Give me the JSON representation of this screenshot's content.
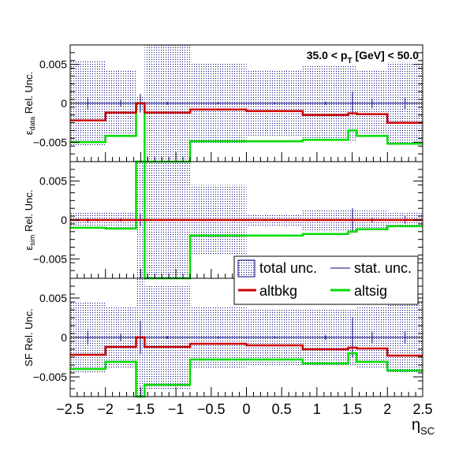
{
  "chart_data": {
    "type": "step",
    "title": "35.0 < p_T [GeV] < 50.0",
    "title_parts": {
      "pre": "35.0 < p",
      "sub": "T",
      "post": " [GeV] < 50.0"
    },
    "xlabel": {
      "main": "η",
      "sub": "SC"
    },
    "xlim": [
      -2.5,
      2.5
    ],
    "x_ticks": [
      -2.5,
      -2,
      -1.5,
      -1,
      -0.5,
      0,
      0.5,
      1,
      1.5,
      2,
      2.5
    ],
    "x_tick_labels": [
      "−2.5",
      "−2",
      "−1.5",
      "−1",
      "−0.5",
      "0",
      "0.5",
      "1",
      "1.5",
      "2",
      "2.5"
    ],
    "bin_edges": [
      -2.5,
      -2.0,
      -1.566,
      -1.444,
      -0.8,
      0.0,
      0.8,
      1.444,
      1.566,
      2.0,
      2.5
    ],
    "colors": {
      "total": "#00007f",
      "stat": "#00007f",
      "altbkg": "#cc0000",
      "altsig": "#00dd00"
    },
    "legend": {
      "position": "lower-right of middle panel",
      "entries": [
        {
          "key": "total",
          "label": "total unc."
        },
        {
          "key": "stat",
          "label": "stat. unc."
        },
        {
          "key": "altbkg",
          "label": "altbkg"
        },
        {
          "key": "altsig",
          "label": "altsig"
        }
      ]
    },
    "panels": [
      {
        "name": "data",
        "ylabel": {
          "pre": "ε",
          "sub": "data",
          "post": " Rel. Unc."
        },
        "ylim": [
          -0.0075,
          0.0075
        ],
        "y_ticks": [
          -0.005,
          0,
          0.005
        ],
        "y_tick_labels": [
          "−0.005",
          "0",
          "0.005"
        ],
        "total_unc": [
          0.0055,
          0.0043,
          0.0008,
          0.0075,
          0.0052,
          0.0043,
          0.0048,
          0.0048,
          0.0042,
          0.0053
        ],
        "stat_unc": [
          0.0008,
          0.0004,
          0.0012,
          0.0002,
          0.0001,
          0.0001,
          0.0002,
          0.0015,
          0.0006,
          0.0007
        ],
        "altbkg": [
          -0.0022,
          -0.0012,
          0.0,
          -0.0012,
          -0.0008,
          -0.001,
          -0.0015,
          -0.0013,
          -0.0014,
          -0.0025
        ],
        "altsig": [
          -0.005,
          -0.0042,
          0.0,
          -0.0075,
          -0.0049,
          -0.0049,
          -0.0047,
          -0.0035,
          -0.0042,
          -0.0052
        ]
      },
      {
        "name": "sim",
        "ylabel": {
          "pre": "ε",
          "sub": "sim",
          "post": " Rel. Unc."
        },
        "ylim": [
          -0.0075,
          0.0075
        ],
        "y_ticks": [
          -0.005,
          0,
          0.005
        ],
        "y_tick_labels": [
          "−0.005",
          "0",
          "0.005"
        ],
        "total_unc": [
          0.001,
          0.001,
          0.0075,
          0.0075,
          0.0045,
          0.0008,
          0.0014,
          0.0014,
          0.0012,
          0.0009
        ],
        "stat_unc": [
          0.0003,
          0.0002,
          0.0008,
          0.0001,
          0.0001,
          0.0001,
          0.0001,
          0.0015,
          0.0003,
          0.0005
        ],
        "altbkg": [
          0.0,
          0.0,
          0.0,
          0.0,
          0.0,
          0.0,
          0.0,
          0.0,
          0.0,
          0.0
        ],
        "altsig": [
          -0.001,
          -0.0011,
          0.0075,
          -0.0075,
          -0.002,
          -0.002,
          -0.0018,
          -0.0015,
          -0.0012,
          -0.0008
        ]
      },
      {
        "name": "sf",
        "ylabel": {
          "pre": "SF",
          "sub": "",
          "post": " Rel. Unc."
        },
        "ylim": [
          -0.0075,
          0.0075
        ],
        "y_ticks": [
          -0.005,
          0,
          0.005
        ],
        "y_tick_labels": [
          "−0.005",
          "0",
          "0.005"
        ],
        "total_unc": [
          0.0045,
          0.0038,
          0.0075,
          0.0065,
          0.0038,
          0.0035,
          0.0035,
          0.0035,
          0.0038,
          0.0045
        ],
        "stat_unc": [
          0.0009,
          0.0005,
          0.0021,
          0.0002,
          0.0001,
          0.0001,
          0.0003,
          0.0025,
          0.0007,
          0.0008
        ],
        "altbkg": [
          -0.0022,
          -0.0012,
          0.0,
          -0.0012,
          -0.0008,
          -0.001,
          -0.0015,
          -0.0013,
          -0.0014,
          -0.0023
        ],
        "altsig": [
          -0.004,
          -0.0031,
          -0.0075,
          -0.006,
          -0.0028,
          -0.0028,
          -0.0033,
          -0.002,
          -0.0031,
          -0.0042
        ]
      }
    ]
  }
}
